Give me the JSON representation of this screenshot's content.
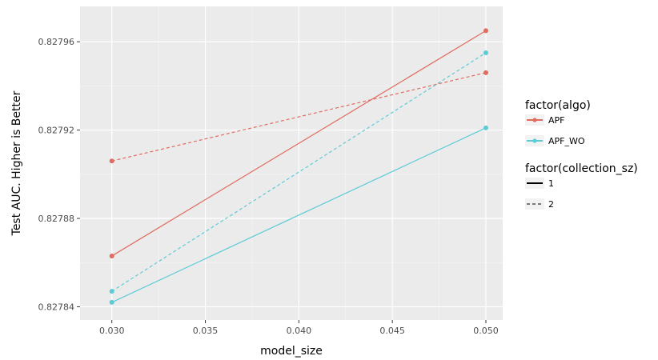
{
  "chart_data": {
    "type": "line",
    "title": "",
    "xlabel": "model_size",
    "ylabel": "Test AUC. Higher is Better",
    "xlim": [
      0.0283,
      0.0509
    ],
    "ylim": [
      0.827834,
      0.827976
    ],
    "x_ticks": [
      0.03,
      0.035,
      0.04,
      0.045,
      0.05
    ],
    "x_tick_labels": [
      "0.030",
      "0.035",
      "0.040",
      "0.045",
      "0.050"
    ],
    "y_ticks": [
      0.82784,
      0.82788,
      0.82792,
      0.82796
    ],
    "y_tick_labels": [
      "0.82784",
      "0.82788",
      "0.82792",
      "0.82796"
    ],
    "grid": true,
    "background": "#ebebeb",
    "legend_position": "right",
    "legends": [
      {
        "title": "factor(algo)",
        "kind": "color",
        "entries": [
          {
            "label": "APF",
            "color": "#e06b5f"
          },
          {
            "label": "APF_WO",
            "color": "#5ccbd6"
          }
        ]
      },
      {
        "title": "factor(collection_sz)",
        "kind": "linetype",
        "entries": [
          {
            "label": "1",
            "dash": "solid"
          },
          {
            "label": "2",
            "dash": "dashed"
          }
        ]
      }
    ],
    "series": [
      {
        "algo": "APF",
        "collection_sz": "1",
        "color": "#e06b5f",
        "dash": "solid",
        "x": [
          0.03,
          0.05
        ],
        "y": [
          0.827863,
          0.827965
        ]
      },
      {
        "algo": "APF",
        "collection_sz": "2",
        "color": "#e06b5f",
        "dash": "dashed",
        "x": [
          0.03,
          0.05
        ],
        "y": [
          0.827906,
          0.827946
        ]
      },
      {
        "algo": "APF_WO",
        "collection_sz": "1",
        "color": "#5ccbd6",
        "dash": "solid",
        "x": [
          0.03,
          0.05
        ],
        "y": [
          0.827842,
          0.827921
        ]
      },
      {
        "algo": "APF_WO",
        "collection_sz": "2",
        "color": "#5ccbd6",
        "dash": "dashed",
        "x": [
          0.03,
          0.05
        ],
        "y": [
          0.827847,
          0.827955
        ]
      }
    ]
  }
}
